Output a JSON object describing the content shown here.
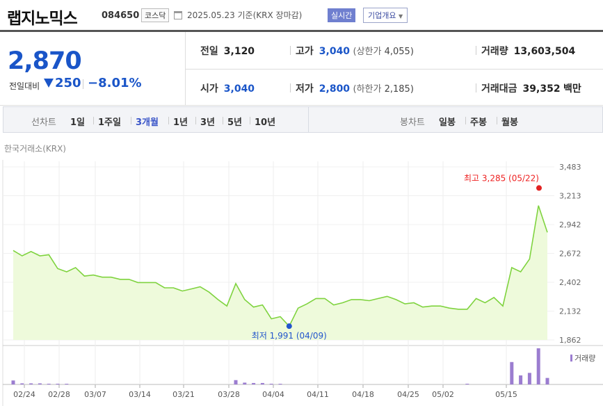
{
  "header": {
    "title": "랩지노믹스",
    "code": "084650",
    "market": "코스닥",
    "date": "2025.05.23 기준(KRX 장마감)",
    "realtime": "실시간",
    "company_info": "기업개요"
  },
  "quote": {
    "price": "2,870",
    "change_label": "전일대비",
    "change": "250",
    "change_pct": "−8.01%",
    "prev_close_label": "전일",
    "prev_close": "3,120",
    "open_label": "시가",
    "open": "3,040",
    "high_label": "고가",
    "high": "3,040",
    "upper_limit_label": "(상한가",
    "upper_limit": "4,055)",
    "low_label": "저가",
    "low": "2,800",
    "lower_limit_label": "(하한가",
    "lower_limit": "2,185)",
    "volume_label": "거래량",
    "volume": "13,603,504",
    "amount_label": "거래대금",
    "amount": "39,352",
    "amount_unit": "백만"
  },
  "periods": {
    "line_label": "선차트",
    "line_options": [
      "1일",
      "1주일",
      "3개월",
      "1년",
      "3년",
      "5년",
      "10년"
    ],
    "active": "3개월",
    "candle_label": "봉차트",
    "candle_options": [
      "일봉",
      "주봉",
      "월봉"
    ]
  },
  "exchange_label": "한국거래소(KRX)",
  "chart_data": {
    "type": "area",
    "y_ticks": [
      "3,483",
      "3,213",
      "2,942",
      "2,672",
      "2,402",
      "2,132",
      "1,862"
    ],
    "ylim": [
      1862,
      3483
    ],
    "x_ticks": [
      "02/24",
      "02/28",
      "03/07",
      "03/14",
      "03/21",
      "03/28",
      "04/04",
      "04/11",
      "04/18",
      "04/25",
      "05/02",
      "05/15"
    ],
    "values": [
      2700,
      2650,
      2690,
      2650,
      2660,
      2530,
      2500,
      2540,
      2460,
      2470,
      2450,
      2450,
      2430,
      2430,
      2400,
      2400,
      2400,
      2350,
      2350,
      2320,
      2340,
      2360,
      2310,
      2240,
      2180,
      2390,
      2240,
      2170,
      2190,
      2060,
      2080,
      1991,
      2160,
      2200,
      2250,
      2250,
      2190,
      2210,
      2240,
      2240,
      2230,
      2250,
      2270,
      2240,
      2200,
      2210,
      2170,
      2180,
      2180,
      2160,
      2150,
      2150,
      2250,
      2210,
      2260,
      2180,
      2540,
      2500,
      2620,
      3120,
      2870
    ],
    "high": {
      "label": "최고 3,285 (05/22)",
      "value": 3285
    },
    "low": {
      "label": "최저 1,991 (04/09)",
      "value": 1991
    },
    "volume_legend": "거래량",
    "volume": [
      0.11,
      0.03,
      0.03,
      0.03,
      0.02,
      0.02,
      0.01,
      0,
      0,
      0,
      0,
      0,
      0,
      0,
      0,
      0,
      0,
      0,
      0,
      0,
      0,
      0,
      0,
      0,
      0,
      0.12,
      0.05,
      0.04,
      0.04,
      0.02,
      0.01,
      0,
      0,
      0,
      0,
      0,
      0,
      0,
      0,
      0,
      0,
      0,
      0,
      0,
      0,
      0,
      0,
      0,
      0,
      0,
      0,
      0.02,
      0,
      0,
      0,
      0,
      0.62,
      0.25,
      0.32,
      1.0,
      0.18
    ],
    "colors": {
      "line": "#7fd33f",
      "fill": "#eefadb",
      "volume": "#9b7dd0",
      "high": "#e22222",
      "low": "#2255cc"
    }
  }
}
